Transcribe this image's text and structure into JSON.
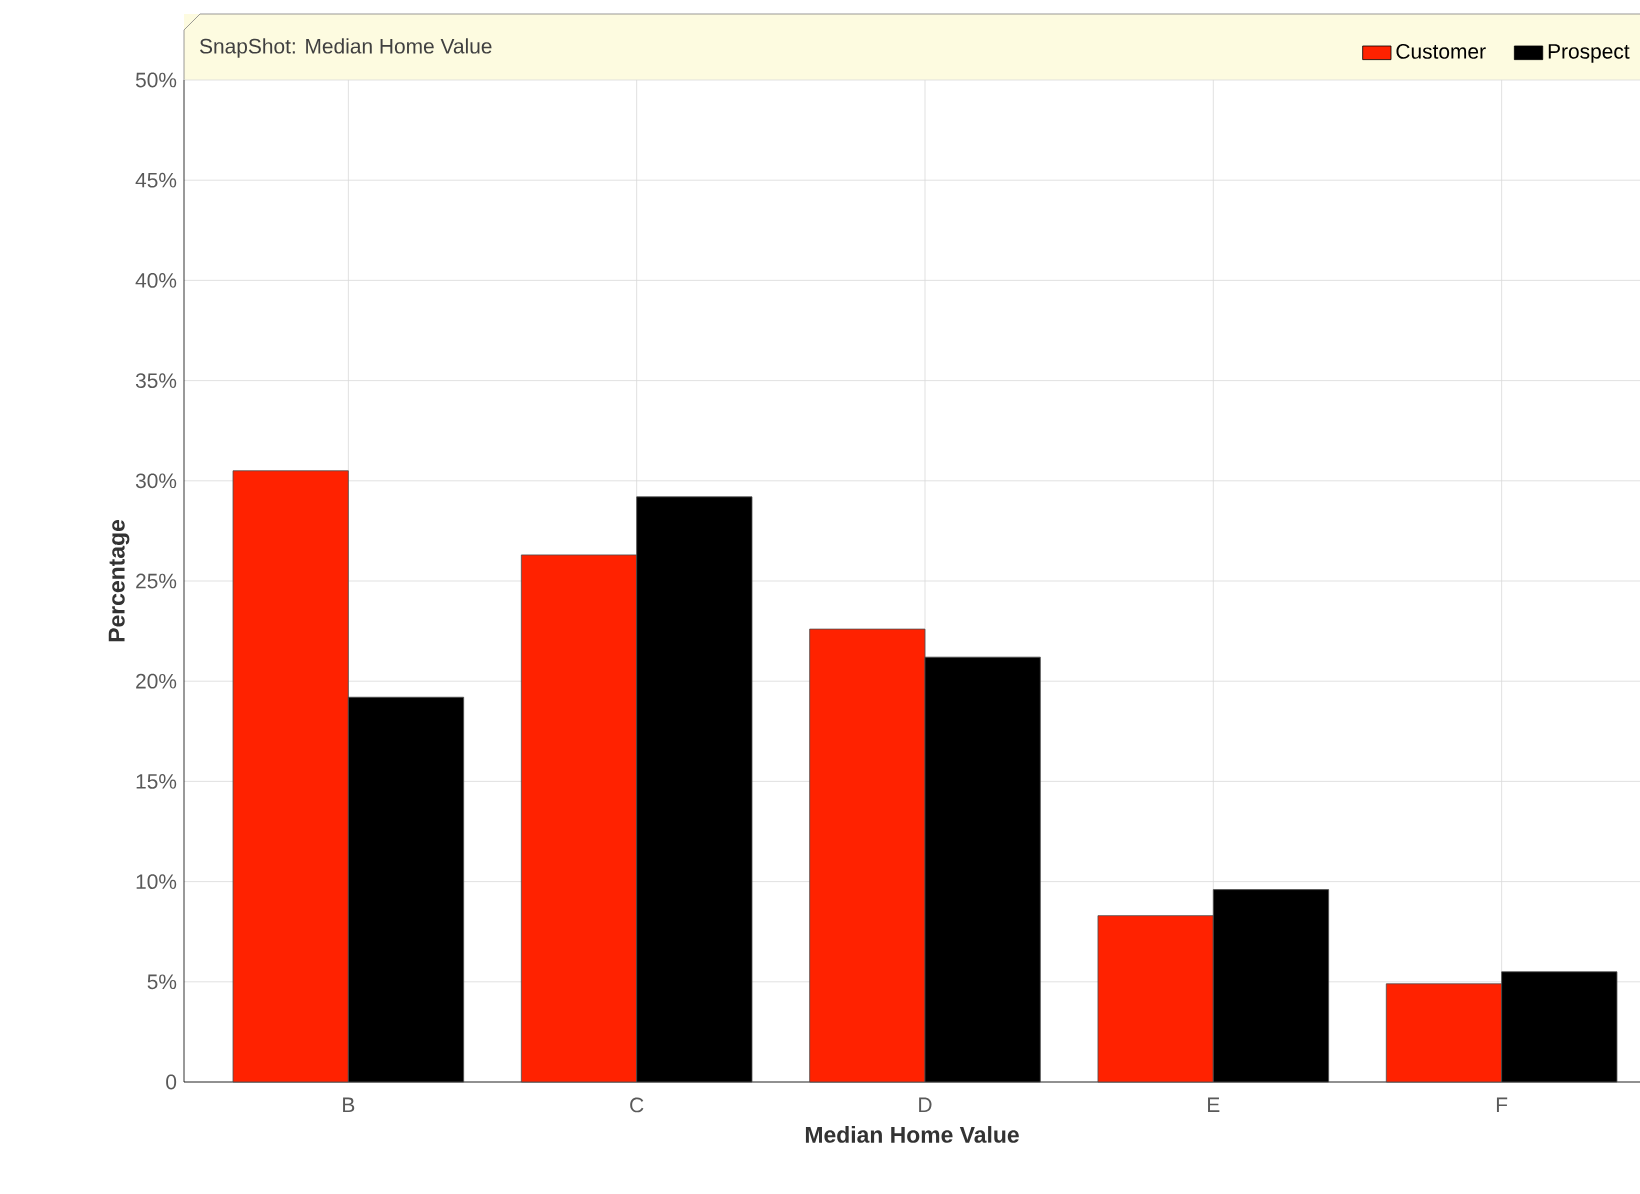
{
  "chart_data": {
    "type": "bar",
    "title": "SnapShot: Median Home Value",
    "xlabel": "Median Home Value",
    "ylabel": "Percentage",
    "categories": [
      "B",
      "C",
      "D",
      "E",
      "F"
    ],
    "series": [
      {
        "name": "Customer",
        "color": "#ff2200",
        "values": [
          30.5,
          26.3,
          22.6,
          8.3,
          4.9
        ]
      },
      {
        "name": "Prospect",
        "color": "#000000",
        "values": [
          19.2,
          29.2,
          21.2,
          9.6,
          5.5
        ]
      }
    ],
    "ylim": [
      0,
      50
    ],
    "yticks": [
      {
        "value": 0,
        "label": "0"
      },
      {
        "value": 5,
        "label": "5%"
      },
      {
        "value": 10,
        "label": "10%"
      },
      {
        "value": 15,
        "label": "15%"
      },
      {
        "value": 20,
        "label": "20%"
      },
      {
        "value": 25,
        "label": "25%"
      },
      {
        "value": 30,
        "label": "30%"
      },
      {
        "value": 35,
        "label": "35%"
      },
      {
        "value": 40,
        "label": "40%"
      },
      {
        "value": 45,
        "label": "45%"
      },
      {
        "value": 50,
        "label": "50%"
      }
    ],
    "grid": true,
    "legend": "top right"
  }
}
